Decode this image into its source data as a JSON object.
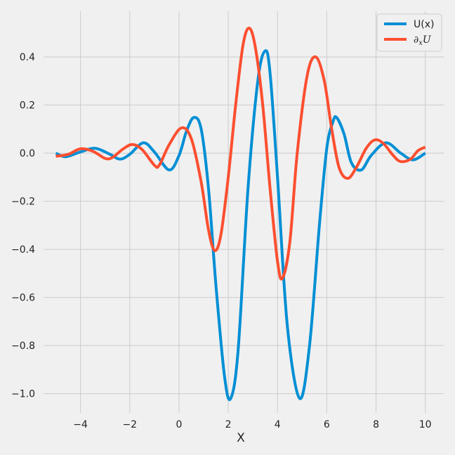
{
  "chart_data": {
    "type": "line",
    "title": "",
    "xlabel": "X",
    "ylabel": "",
    "xlim": [
      -5.5,
      10.75
    ],
    "ylim": [
      -1.08,
      0.59
    ],
    "xticks": [
      -4,
      -2,
      0,
      2,
      4,
      6,
      8,
      10
    ],
    "xtick_labels": [
      "−4",
      "−2",
      "0",
      "2",
      "4",
      "6",
      "8",
      "10"
    ],
    "yticks": [
      -1.0,
      -0.8,
      -0.6,
      -0.4,
      -0.2,
      0.0,
      0.2,
      0.4
    ],
    "ytick_labels": [
      "−1.0",
      "−0.8",
      "−0.6",
      "−0.4",
      "−0.2",
      "0.0",
      "0.2",
      "0.4"
    ],
    "grid": true,
    "legend": {
      "placement": "top-right"
    },
    "series": [
      {
        "name": "U(x)",
        "color": "#008fd5",
        "points": [
          [
            -5.0,
            0.0
          ],
          [
            -4.6,
            -0.015
          ],
          [
            -4.0,
            0.005
          ],
          [
            -3.4,
            0.02
          ],
          [
            -2.8,
            -0.005
          ],
          [
            -2.4,
            -0.025
          ],
          [
            -2.0,
            -0.005
          ],
          [
            -1.45,
            0.043
          ],
          [
            -1.0,
            0.005
          ],
          [
            -0.4,
            -0.07
          ],
          [
            0.0,
            -0.01
          ],
          [
            0.3,
            0.09
          ],
          [
            0.6,
            0.148
          ],
          [
            0.9,
            0.1
          ],
          [
            1.2,
            -0.15
          ],
          [
            1.5,
            -0.55
          ],
          [
            1.85,
            -0.93
          ],
          [
            2.1,
            -1.02
          ],
          [
            2.4,
            -0.82
          ],
          [
            2.8,
            -0.15
          ],
          [
            3.2,
            0.3
          ],
          [
            3.5,
            0.425
          ],
          [
            3.7,
            0.33
          ],
          [
            4.0,
            -0.1
          ],
          [
            4.4,
            -0.72
          ],
          [
            4.9,
            -1.02
          ],
          [
            5.3,
            -0.8
          ],
          [
            5.7,
            -0.3
          ],
          [
            6.0,
            0.02
          ],
          [
            6.25,
            0.13
          ],
          [
            6.4,
            0.148
          ],
          [
            6.7,
            0.08
          ],
          [
            7.0,
            -0.04
          ],
          [
            7.4,
            -0.07
          ],
          [
            7.8,
            -0.01
          ],
          [
            8.4,
            0.043
          ],
          [
            9.0,
            0.0
          ],
          [
            9.5,
            -0.028
          ],
          [
            10.0,
            0.0
          ]
        ]
      },
      {
        "name": "∂xU",
        "color": "#fc4f30",
        "points": [
          [
            -5.0,
            -0.013
          ],
          [
            -4.5,
            -0.005
          ],
          [
            -4.0,
            0.018
          ],
          [
            -3.5,
            0.008
          ],
          [
            -3.0,
            -0.022
          ],
          [
            -2.7,
            -0.018
          ],
          [
            -2.3,
            0.015
          ],
          [
            -1.9,
            0.036
          ],
          [
            -1.5,
            0.015
          ],
          [
            -1.0,
            -0.05
          ],
          [
            -0.8,
            -0.05
          ],
          [
            -0.4,
            0.035
          ],
          [
            0.1,
            0.105
          ],
          [
            0.5,
            0.06
          ],
          [
            0.9,
            -0.12
          ],
          [
            1.2,
            -0.32
          ],
          [
            1.45,
            -0.405
          ],
          [
            1.7,
            -0.34
          ],
          [
            2.0,
            -0.1
          ],
          [
            2.3,
            0.2
          ],
          [
            2.6,
            0.45
          ],
          [
            2.85,
            0.52
          ],
          [
            3.1,
            0.44
          ],
          [
            3.4,
            0.2
          ],
          [
            3.7,
            -0.15
          ],
          [
            4.0,
            -0.45
          ],
          [
            4.2,
            -0.52
          ],
          [
            4.5,
            -0.37
          ],
          [
            4.8,
            0.0
          ],
          [
            5.2,
            0.32
          ],
          [
            5.55,
            0.4
          ],
          [
            5.9,
            0.3
          ],
          [
            6.2,
            0.1
          ],
          [
            6.5,
            -0.06
          ],
          [
            6.85,
            -0.105
          ],
          [
            7.2,
            -0.06
          ],
          [
            7.6,
            0.02
          ],
          [
            7.95,
            0.055
          ],
          [
            8.3,
            0.04
          ],
          [
            8.7,
            -0.01
          ],
          [
            9.0,
            -0.035
          ],
          [
            9.4,
            -0.025
          ],
          [
            9.7,
            0.01
          ],
          [
            10.0,
            0.025
          ]
        ]
      }
    ]
  },
  "legend_labels": {
    "u": "U(x)",
    "du_main": "∂",
    "du_sub": "x",
    "du_end": "U"
  }
}
